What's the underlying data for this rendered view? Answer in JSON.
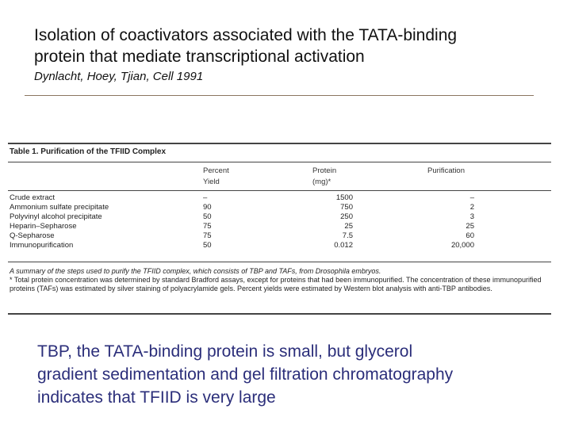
{
  "header": {
    "title_line1": "Isolation of coactivators associated with the TATA-binding",
    "title_line2": "protein that mediate transcriptional activation",
    "citation": "Dynlacht, Hoey, Tjian, Cell 1991"
  },
  "table": {
    "title": "Table 1.  Purification of the TFIID Complex",
    "columns": {
      "yield": [
        "Percent",
        "Yield"
      ],
      "protein": [
        "Protein",
        "(mg)*"
      ],
      "purification": [
        "",
        "Purification"
      ]
    },
    "rows": [
      {
        "step": "Crude extract",
        "yield": "–",
        "protein": "1500",
        "purification": "–"
      },
      {
        "step": "Ammonium sulfate precipitate",
        "yield": "90",
        "protein": "750",
        "purification": "2"
      },
      {
        "step": "Polyvinyl alcohol precipitate",
        "yield": "50",
        "protein": "250",
        "purification": "3"
      },
      {
        "step": "Heparin–Sepharose",
        "yield": "75",
        "protein": "25",
        "purification": "25"
      },
      {
        "step": "Q-Sepharose",
        "yield": "75",
        "protein": "7.5",
        "purification": "60"
      },
      {
        "step": "Immunopurification",
        "yield": "50",
        "protein": "0.012",
        "purification": "20,000"
      }
    ],
    "summary": "A summary of the steps used to purify the TFIID complex, which consists of TBP and TAFs, from Drosophila embryos.",
    "footnote": "* Total protein concentration was determined by standard Bradford assays, except for proteins that had been immunopurified. The concentration of these immunopurified proteins (TAFs) was estimated by silver staining of polyacrylamide gels. Percent yields were estimated by Western blot analysis with anti-TBP antibodies."
  },
  "caption": {
    "line1": "TBP, the TATA-binding protein is small, but glycerol",
    "line2": "gradient sedimentation and gel filtration chromatography",
    "line3": "indicates that TFIID is very large"
  }
}
